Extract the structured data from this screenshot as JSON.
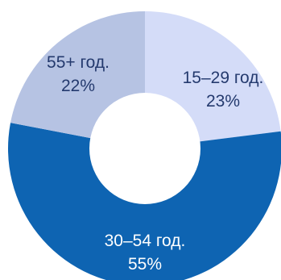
{
  "chart_data": {
    "type": "pie",
    "variant": "donut",
    "slices": [
      {
        "category": "15–29 год.",
        "value": 23,
        "value_label": "23%",
        "color": "#d4dcf8",
        "text_color": "#243a6e"
      },
      {
        "category": "30–54 год.",
        "value": 55,
        "value_label": "55%",
        "color": "#0e64b2",
        "text_color": "#ffffff"
      },
      {
        "category": "55+ год.",
        "value": 22,
        "value_label": "22%",
        "color": "#b6c3e3",
        "text_color": "#243a6e"
      }
    ]
  }
}
